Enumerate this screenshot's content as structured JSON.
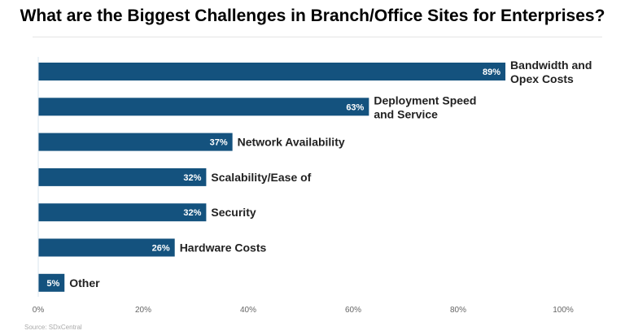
{
  "title": "What are the Biggest Challenges in Branch/Office Sites for Enterprises?",
  "source": "Source: SDxCentral",
  "chart_data": {
    "type": "bar",
    "orientation": "horizontal",
    "title": "What are the Biggest Challenges in Branch/Office Sites for Enterprises?",
    "categories": [
      [
        "Bandwidth and",
        "Opex Costs"
      ],
      [
        "Deployment Speed",
        "and Service"
      ],
      [
        "Network Availability"
      ],
      [
        "Scalability/Ease of"
      ],
      [
        "Security"
      ],
      [
        "Hardware Costs"
      ],
      [
        "Other"
      ]
    ],
    "values": [
      89,
      63,
      37,
      32,
      32,
      26,
      5
    ],
    "data_labels": [
      "89%",
      "63%",
      "37%",
      "32%",
      "32%",
      "26%",
      "5%"
    ],
    "xlim": [
      0,
      100
    ],
    "x_ticks": [
      "0%",
      "20%",
      "40%",
      "60%",
      "80%",
      "100%"
    ],
    "grid": false,
    "bar_color": "#14527e"
  }
}
